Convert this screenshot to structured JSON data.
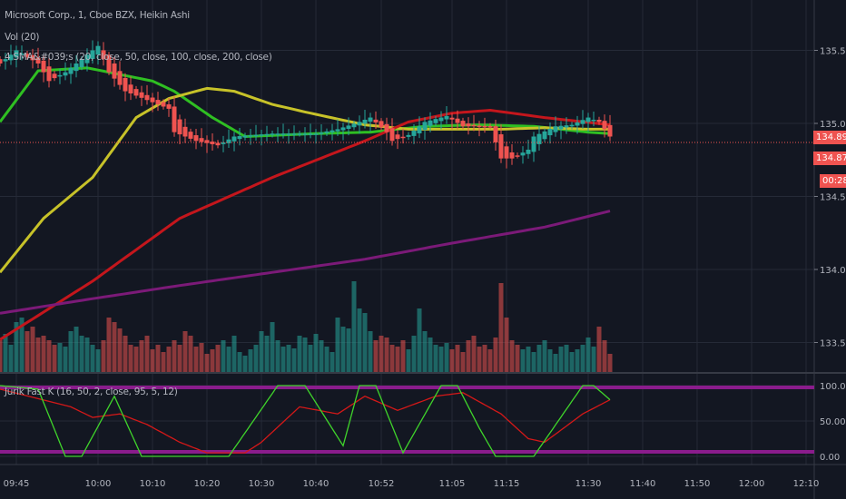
{
  "legend": {
    "symbol": "Microsoft Corp., 1, Cboe BZX, Heikin Ashi",
    "volume": "Vol (20)",
    "ma": "4 SMA&#039;s (20, close, 50, close, 100, close, 200, close)",
    "oscillator": "Jurik Fast K (16, 50, 2, close, 95, 5, 12)"
  },
  "price_badges": {
    "last": "134.89",
    "second": "134.87",
    "countdown": "00:28"
  },
  "colors": {
    "background": "#131722",
    "grid": "#252a37",
    "up": "#26a69a",
    "down": "#ef5350",
    "sma20": "#2fbf22",
    "sma50": "#c7c229",
    "sma100": "#c4161c",
    "sma200": "#7b1a78",
    "fastk": "#3fd42b",
    "slowk": "#d51818",
    "band": "#8a1c8c"
  },
  "chart_data": [
    {
      "type": "candlestick",
      "title": "Microsoft Corp., 1, Cboe BZX, Heikin Ashi",
      "y_ticks": [
        "133.50",
        "134.00",
        "134.50",
        "135.00",
        "135.50"
      ],
      "x_ticks": [
        "09:45",
        "10:00",
        "10:10",
        "10:20",
        "10:30",
        "10:40",
        "10:52",
        "11:05",
        "11:15",
        "11:30",
        "11:40",
        "11:50",
        "12:00",
        "12:10"
      ],
      "ylim": [
        133.3,
        135.85
      ],
      "grid": true,
      "close_path": [
        [
          "09:42",
          135.41
        ],
        [
          "09:45",
          135.5
        ],
        [
          "09:49",
          135.41
        ],
        [
          "09:51",
          135.29
        ],
        [
          "09:54",
          135.35
        ],
        [
          "09:58",
          135.47
        ],
        [
          "10:00",
          135.53
        ],
        [
          "10:02",
          135.35
        ],
        [
          "10:05",
          135.22
        ],
        [
          "10:09",
          135.16
        ],
        [
          "10:13",
          135.1
        ],
        [
          "10:14",
          134.94
        ],
        [
          "10:18",
          134.88
        ],
        [
          "10:22",
          134.85
        ],
        [
          "10:25",
          134.91
        ],
        [
          "10:32",
          134.93
        ],
        [
          "10:40",
          134.93
        ],
        [
          "10:44",
          134.96
        ],
        [
          "10:48",
          135.01
        ],
        [
          "10:50",
          135.04
        ],
        [
          "10:53",
          134.94
        ],
        [
          "10:54",
          134.88
        ],
        [
          "10:57",
          134.92
        ],
        [
          "11:00",
          135.01
        ],
        [
          "11:04",
          135.05
        ],
        [
          "11:07",
          134.98
        ],
        [
          "11:12",
          134.98
        ],
        [
          "11:14",
          134.76
        ],
        [
          "11:16",
          134.76
        ],
        [
          "11:19",
          134.82
        ],
        [
          "11:20",
          134.91
        ],
        [
          "11:24",
          134.98
        ],
        [
          "11:27",
          134.99
        ],
        [
          "11:30",
          135.04
        ],
        [
          "11:32",
          135.01
        ],
        [
          "11:34",
          134.91
        ]
      ],
      "series": [
        {
          "name": "SMA 20",
          "values": [
            [
              "09:42",
              135.01
            ],
            [
              "09:49",
              135.36
            ],
            [
              "09:58",
              135.38
            ],
            [
              "10:10",
              135.29
            ],
            [
              "10:14",
              135.22
            ],
            [
              "10:21",
              135.04
            ],
            [
              "10:27",
              134.91
            ],
            [
              "10:40",
              134.93
            ],
            [
              "10:50",
              134.94
            ],
            [
              "11:00",
              134.98
            ],
            [
              "11:10",
              134.99
            ],
            [
              "11:20",
              134.98
            ],
            [
              "11:30",
              134.94
            ],
            [
              "11:34",
              134.93
            ]
          ]
        },
        {
          "name": "SMA 50",
          "values": [
            [
              "09:42",
              133.98
            ],
            [
              "09:50",
              134.35
            ],
            [
              "09:59",
              134.63
            ],
            [
              "10:07",
              135.04
            ],
            [
              "10:13",
              135.17
            ],
            [
              "10:20",
              135.24
            ],
            [
              "10:25",
              135.22
            ],
            [
              "10:32",
              135.13
            ],
            [
              "10:39",
              135.07
            ],
            [
              "10:49",
              134.99
            ],
            [
              "10:57",
              134.96
            ],
            [
              "11:05",
              134.96
            ],
            [
              "11:14",
              134.96
            ],
            [
              "11:22",
              134.97
            ],
            [
              "11:30",
              134.96
            ],
            [
              "11:34",
              134.96
            ]
          ]
        },
        {
          "name": "SMA 100",
          "values": [
            [
              "09:42",
              133.52
            ],
            [
              "09:59",
              133.92
            ],
            [
              "10:15",
              134.35
            ],
            [
              "10:32",
              134.63
            ],
            [
              "10:49",
              134.88
            ],
            [
              "10:57",
              135.01
            ],
            [
              "11:05",
              135.07
            ],
            [
              "11:12",
              135.09
            ],
            [
              "11:22",
              135.04
            ],
            [
              "11:34",
              134.99
            ]
          ]
        },
        {
          "name": "SMA 200",
          "values": [
            [
              "09:42",
              133.7
            ],
            [
              "09:59",
              133.8
            ],
            [
              "10:15",
              133.89
            ],
            [
              "10:32",
              133.98
            ],
            [
              "10:49",
              134.07
            ],
            [
              "11:05",
              134.18
            ],
            [
              "11:22",
              134.29
            ],
            [
              "11:34",
              134.4
            ]
          ]
        }
      ],
      "volume_relative": [
        35,
        42,
        30,
        55,
        60,
        45,
        50,
        38,
        40,
        35,
        30,
        32,
        28,
        45,
        50,
        40,
        38,
        30,
        25,
        35,
        60,
        55,
        48,
        40,
        30,
        28,
        35,
        40,
        25,
        30,
        22,
        28,
        35,
        30,
        45,
        40,
        28,
        32,
        20,
        25,
        30,
        35,
        28,
        40,
        22,
        18,
        25,
        30,
        45,
        40,
        55,
        35,
        28,
        30,
        26,
        40,
        38,
        30,
        42,
        35,
        28,
        22,
        60,
        50,
        48,
        100,
        70,
        65,
        45,
        35,
        40,
        38,
        30,
        28,
        35,
        25,
        40,
        70,
        45,
        38,
        30,
        28,
        32,
        25,
        30,
        22,
        35,
        40,
        28,
        30,
        25,
        38,
        98,
        60,
        35,
        30,
        25,
        28,
        22,
        30,
        35,
        25,
        20,
        28,
        30,
        22,
        25,
        30,
        38,
        28,
        50,
        35,
        20
      ]
    },
    {
      "type": "line",
      "title": "Jurik Fast K (16, 50, 2, close, 95, 5, 12)",
      "y_ticks": [
        "0.00",
        "50.00",
        "100.00"
      ],
      "ylim": [
        -5,
        110
      ],
      "bands": [
        0,
        100
      ],
      "series": [
        {
          "name": "Fast K",
          "values": [
            [
              "09:42",
              100
            ],
            [
              "09:49",
              95
            ],
            [
              "09:54",
              0
            ],
            [
              "09:57",
              0
            ],
            [
              "10:03",
              85
            ],
            [
              "10:08",
              0
            ],
            [
              "10:24",
              0
            ],
            [
              "10:33",
              100
            ],
            [
              "10:38",
              100
            ],
            [
              "10:45",
              15
            ],
            [
              "10:48",
              100
            ],
            [
              "10:51",
              100
            ],
            [
              "10:56",
              5
            ],
            [
              "11:03",
              100
            ],
            [
              "11:06",
              100
            ],
            [
              "11:10",
              40
            ],
            [
              "11:13",
              0
            ],
            [
              "11:20",
              0
            ],
            [
              "11:29",
              100
            ],
            [
              "11:31",
              100
            ],
            [
              "11:34",
              80
            ]
          ]
        },
        {
          "name": "Slow",
          "values": [
            [
              "09:42",
              95
            ],
            [
              "09:55",
              70
            ],
            [
              "09:59",
              55
            ],
            [
              "10:04",
              60
            ],
            [
              "10:09",
              45
            ],
            [
              "10:15",
              20
            ],
            [
              "10:20",
              5
            ],
            [
              "10:27",
              5
            ],
            [
              "10:30",
              20
            ],
            [
              "10:37",
              70
            ],
            [
              "10:44",
              60
            ],
            [
              "10:49",
              85
            ],
            [
              "10:55",
              65
            ],
            [
              "11:02",
              85
            ],
            [
              "11:07",
              90
            ],
            [
              "11:14",
              60
            ],
            [
              "11:19",
              25
            ],
            [
              "11:22",
              20
            ],
            [
              "11:29",
              60
            ],
            [
              "11:34",
              80
            ]
          ]
        }
      ]
    }
  ]
}
